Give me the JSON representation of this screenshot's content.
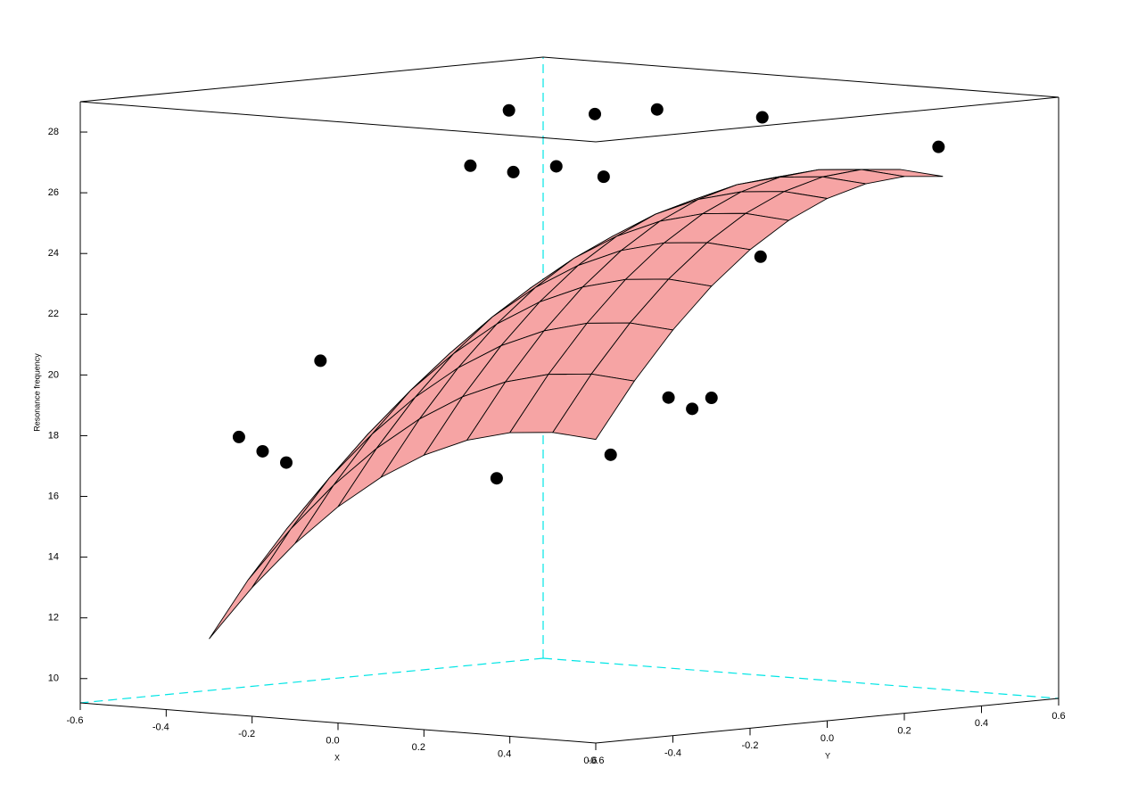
{
  "chart_data": {
    "type": "surface3d",
    "xlabel": "X",
    "ylabel": "Y",
    "zlabel": "Resonance frequency",
    "xlim": [
      -0.6,
      0.6
    ],
    "ylim": [
      -0.6,
      0.6
    ],
    "zlim": [
      9.2,
      29
    ],
    "xticks": [
      -0.6,
      -0.4,
      -0.2,
      {
        "value": 0,
        "label": "0.0"
      },
      0.2,
      0.4,
      0.6
    ],
    "yticks": [
      -0.6,
      -0.4,
      -0.2,
      {
        "value": 0,
        "label": "0.0"
      },
      0.2,
      0.4,
      0.6
    ],
    "zticks": [
      10,
      12,
      14,
      16,
      18,
      20,
      22,
      24,
      26,
      28
    ],
    "color": "#f6a4a4",
    "point_color": "#000000",
    "surface": {
      "x": [
        -0.3,
        -0.2,
        -0.1,
        0.0,
        0.1,
        0.2,
        0.3,
        0.4,
        0.5,
        0.6
      ],
      "y": [
        -0.6,
        -0.5,
        -0.4,
        -0.3,
        -0.2,
        -0.1,
        0.0,
        0.1,
        0.2,
        0.3
      ],
      "z": [
        [
          11.64,
          13.44,
          15.0,
          16.32,
          17.4,
          18.24,
          18.84,
          19.2,
          19.32,
          19.2
        ],
        [
          13.44,
          15.24,
          16.8,
          18.12,
          19.2,
          20.04,
          20.64,
          21.0,
          21.12,
          21.0
        ],
        [
          15.0,
          16.8,
          18.36,
          19.68,
          20.76,
          21.6,
          22.2,
          22.56,
          22.68,
          22.56
        ],
        [
          16.32,
          18.12,
          19.68,
          21.0,
          22.08,
          22.92,
          23.52,
          23.88,
          24.0,
          23.88
        ],
        [
          17.4,
          19.2,
          20.76,
          22.08,
          23.16,
          24.0,
          24.6,
          24.96,
          25.08,
          24.96
        ],
        [
          18.24,
          20.04,
          21.6,
          22.92,
          24.0,
          24.84,
          25.44,
          25.8,
          25.92,
          25.8
        ],
        [
          18.84,
          20.64,
          22.2,
          23.52,
          24.6,
          25.44,
          26.04,
          26.4,
          26.52,
          26.4
        ],
        [
          19.2,
          21.0,
          22.56,
          23.88,
          24.96,
          25.8,
          26.4,
          26.76,
          26.88,
          26.76
        ],
        [
          19.32,
          21.12,
          22.68,
          24.0,
          25.08,
          25.92,
          26.52,
          26.88,
          27.0,
          26.88
        ],
        [
          19.2,
          21.0,
          22.56,
          23.88,
          24.96,
          25.8,
          26.4,
          26.76,
          26.88,
          26.76
        ]
      ]
    },
    "points": {
      "x": [
        -0.5,
        -0.3,
        -0.2,
        0.0,
        0.5,
        -0.5,
        -0.4,
        -0.3,
        -0.1,
        0.3,
        0.4,
        0.3,
        0.5,
        0.6,
        0.6,
        0.5,
        -0.4,
        -0.5,
        -0.4,
        -0.3,
        0.1
      ],
      "y": [
        0.4,
        0.4,
        0.45,
        0.5,
        0.4,
        0.3,
        0.3,
        0.3,
        0.2,
        0.1,
        0.05,
        -0.2,
        -0.3,
        -0.3,
        -0.35,
        -0.45,
        -0.2,
        -0.3,
        -0.35,
        -0.4,
        -0.3
      ],
      "z": [
        27.6,
        27.7,
        27.9,
        27.8,
        27.5,
        25.9,
        25.8,
        26.1,
        26.1,
        24.3,
        24.2,
        22.3,
        20.1,
        20.2,
        19.9,
        18.4,
        20.2,
        17.7,
        17.4,
        17.2,
        17.0
      ]
    }
  }
}
